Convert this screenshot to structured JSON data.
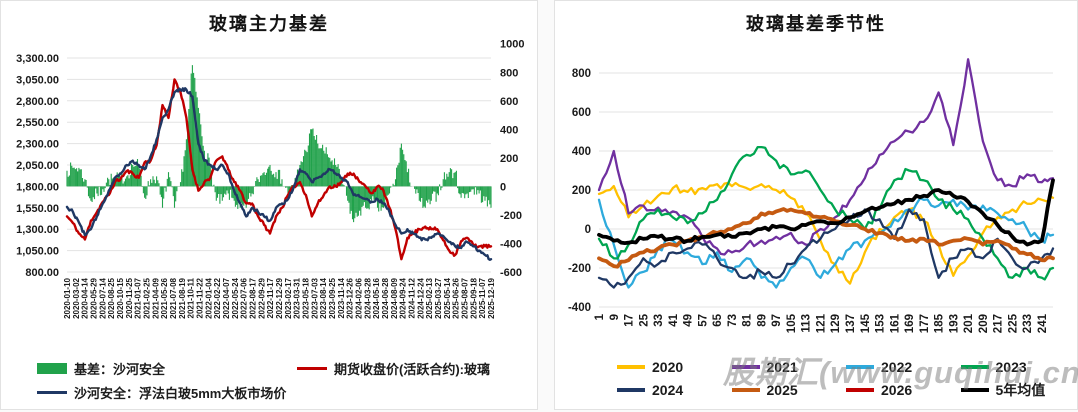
{
  "watermark": "股期汇(www.guqihui.cn)",
  "chart_data": [
    {
      "type": "combo",
      "title": "玻璃主力基差",
      "legend_position": "bottom",
      "grid": true,
      "left_axis": {
        "tick_labels": [
          "3,300.00",
          "3,050.00",
          "2,800.00",
          "2,550.00",
          "2,300.00",
          "2,050.00",
          "1,800.00",
          "1,550.00",
          "1,300.00",
          "1,050.00",
          "800.00"
        ],
        "min": 800,
        "max": 3300
      },
      "right_axis": {
        "ticks": [
          1000,
          800,
          600,
          400,
          200,
          0,
          -200,
          -400,
          -600
        ],
        "min": -600,
        "max": 1000,
        "zero_aligned_with_left_value": 1800
      },
      "x_axis_tick_labels": [
        "2020-01-10",
        "2020-03-02",
        "2020-04-14",
        "2020-05-29",
        "2020-07-14",
        "2020-08-25",
        "2020-10-15",
        "2020-11-25",
        "2021-01-07",
        "2021-02-25",
        "2021-04-09",
        "2021-05-26",
        "2021-07-08",
        "2021-08-19",
        "2021-10-11",
        "2021-11-22",
        "2022-01-04",
        "2022-02-22",
        "2022-04-07",
        "2022-05-24",
        "2022-07-06",
        "2022-08-17",
        "2022-09-29",
        "2022-11-17",
        "2022-12-29",
        "2023-02-17",
        "2023-03-31",
        "2023-05-18",
        "2023-07-03",
        "2023-08-14",
        "2023-09-25",
        "2023-11-14",
        "2023-12-26",
        "2024-02-06",
        "2024-03-28",
        "2024-05-16",
        "2024-06-28",
        "2024-08-09",
        "2024-09-24",
        "2024-11-12",
        "2024-12-24",
        "2025-02-13",
        "2025-03-27",
        "2025-05-14",
        "2025-06-26",
        "2025-08-07",
        "2025-09-18",
        "2025-11-07",
        "2025-12-19"
      ],
      "months": [
        "2020-01",
        "2020-02",
        "2020-03",
        "2020-04",
        "2020-05",
        "2020-06",
        "2020-07",
        "2020-08",
        "2020-09",
        "2020-10",
        "2020-11",
        "2020-12",
        "2021-01",
        "2021-02",
        "2021-03",
        "2021-04",
        "2021-05",
        "2021-06",
        "2021-07",
        "2021-08",
        "2021-09",
        "2021-10",
        "2021-11",
        "2021-12",
        "2022-01",
        "2022-02",
        "2022-03",
        "2022-04",
        "2022-05",
        "2022-06",
        "2022-07",
        "2022-08",
        "2022-09",
        "2022-10",
        "2022-11",
        "2022-12",
        "2023-01",
        "2023-02",
        "2023-03",
        "2023-04",
        "2023-05",
        "2023-06",
        "2023-07",
        "2023-08",
        "2023-09",
        "2023-10",
        "2023-11",
        "2023-12",
        "2024-01",
        "2024-02",
        "2024-03",
        "2024-04",
        "2024-05",
        "2024-06",
        "2024-07",
        "2024-08",
        "2024-09",
        "2024-10",
        "2024-11",
        "2024-12",
        "2025-01",
        "2025-02",
        "2025-03",
        "2025-04",
        "2025-05",
        "2025-06",
        "2025-07",
        "2025-08",
        "2025-09",
        "2025-10",
        "2025-11",
        "2025-12"
      ],
      "series": [
        {
          "name": "基差：沙河安全",
          "type": "bar",
          "axis": "right",
          "color": "#21A24B",
          "values": [
            110,
            130,
            130,
            50,
            -100,
            -50,
            -20,
            50,
            50,
            60,
            70,
            150,
            150,
            -80,
            50,
            70,
            -150,
            100,
            -150,
            30,
            330,
            850,
            550,
            250,
            150,
            -100,
            -100,
            -50,
            -100,
            -150,
            -150,
            -50,
            50,
            100,
            150,
            100,
            50,
            -50,
            0,
            150,
            250,
            400,
            300,
            250,
            200,
            150,
            50,
            -100,
            -250,
            -170,
            -150,
            -100,
            -150,
            -150,
            -50,
            50,
            300,
            100,
            0,
            -100,
            -150,
            -100,
            -50,
            50,
            100,
            100,
            -80,
            -50,
            -20,
            -50,
            -100,
            -150
          ]
        },
        {
          "name": "期货收盘价(活跃合约):玻璃",
          "type": "line",
          "axis": "left",
          "color": "#C00000",
          "values": [
            1450,
            1370,
            1250,
            1180,
            1400,
            1500,
            1620,
            1700,
            1850,
            1890,
            1980,
            1950,
            1900,
            2080,
            2100,
            2280,
            2750,
            2600,
            3050,
            2900,
            2600,
            2000,
            1750,
            1850,
            1900,
            2100,
            2150,
            2000,
            1850,
            1750,
            1600,
            1600,
            1450,
            1350,
            1250,
            1450,
            1550,
            1700,
            1800,
            1850,
            1700,
            1450,
            1600,
            1700,
            1800,
            1800,
            1850,
            1950,
            1950,
            1850,
            1800,
            1720,
            1800,
            1750,
            1550,
            1300,
            950,
            1200,
            1250,
            1300,
            1330,
            1300,
            1300,
            1170,
            1050,
            1000,
            1160,
            1200,
            1120,
            1100,
            1100,
            1100
          ]
        },
        {
          "name": "沙河安全：浮法白玻5mm大板市场价",
          "type": "line",
          "axis": "left",
          "color": "#1F3864",
          "values": [
            1560,
            1500,
            1380,
            1230,
            1300,
            1450,
            1600,
            1750,
            1900,
            1950,
            2050,
            2100,
            2050,
            2000,
            2150,
            2350,
            2600,
            2700,
            2900,
            2930,
            2930,
            2850,
            2300,
            2100,
            2050,
            2000,
            2050,
            1950,
            1750,
            1600,
            1450,
            1550,
            1500,
            1450,
            1400,
            1550,
            1600,
            1650,
            1800,
            2000,
            1950,
            1850,
            1900,
            1950,
            2000,
            1950,
            1900,
            1850,
            1700,
            1680,
            1650,
            1620,
            1650,
            1600,
            1500,
            1350,
            1250,
            1300,
            1250,
            1200,
            1180,
            1200,
            1250,
            1220,
            1150,
            1100,
            1080,
            1150,
            1100,
            1050,
            1000,
            950
          ]
        }
      ]
    },
    {
      "type": "line",
      "title": "玻璃基差季节性",
      "legend_position": "bottom",
      "grid": true,
      "y_ticks": [
        800,
        600,
        400,
        200,
        0,
        -200,
        -400
      ],
      "ylim": [
        -400,
        900
      ],
      "x_ticks": [
        1,
        9,
        17,
        25,
        33,
        41,
        49,
        57,
        65,
        73,
        81,
        89,
        97,
        105,
        113,
        121,
        129,
        137,
        145,
        153,
        161,
        169,
        177,
        185,
        193,
        201,
        209,
        217,
        225,
        233,
        241
      ],
      "x": [
        1,
        9,
        17,
        25,
        33,
        41,
        49,
        57,
        65,
        73,
        81,
        89,
        97,
        105,
        113,
        121,
        129,
        137,
        145,
        153,
        161,
        169,
        177,
        185,
        193,
        201,
        209,
        217,
        225,
        233,
        241,
        247
      ],
      "series": [
        {
          "name": "2020",
          "color": "#FFC000",
          "thick": false,
          "values": [
            180,
            220,
            60,
            120,
            170,
            210,
            190,
            210,
            230,
            220,
            210,
            230,
            200,
            160,
            80,
            -60,
            -180,
            -280,
            -120,
            0,
            60,
            100,
            40,
            -80,
            -240,
            -140,
            -20,
            60,
            100,
            130,
            150,
            160
          ]
        },
        {
          "name": "2021",
          "color": "#7030A0",
          "thick": false,
          "values": [
            200,
            400,
            80,
            120,
            110,
            90,
            60,
            -40,
            -100,
            -120,
            -80,
            -60,
            -40,
            -20,
            -80,
            0,
            60,
            150,
            260,
            380,
            450,
            500,
            550,
            700,
            430,
            870,
            450,
            250,
            220,
            280,
            240,
            260
          ]
        },
        {
          "name": "2022",
          "color": "#2EAADC",
          "thick": false,
          "values": [
            150,
            -80,
            -300,
            -220,
            -100,
            -60,
            -120,
            -180,
            -120,
            -220,
            -150,
            -250,
            -300,
            -200,
            -150,
            -250,
            -180,
            -100,
            -60,
            -20,
            50,
            100,
            150,
            120,
            150,
            100,
            120,
            80,
            50,
            0,
            -60,
            -30
          ]
        },
        {
          "name": "2023",
          "color": "#00A550",
          "thick": false,
          "values": [
            -50,
            -150,
            -80,
            50,
            100,
            60,
            30,
            80,
            150,
            280,
            380,
            420,
            350,
            280,
            300,
            200,
            100,
            50,
            0,
            100,
            250,
            300,
            250,
            150,
            100,
            50,
            -50,
            -150,
            -250,
            -200,
            -250,
            -200
          ]
        },
        {
          "name": "2024",
          "color": "#1F3864",
          "thick": false,
          "values": [
            -250,
            -300,
            -250,
            -150,
            -180,
            -120,
            -100,
            -80,
            -150,
            -200,
            -250,
            -220,
            -250,
            -180,
            -100,
            -50,
            0,
            50,
            100,
            50,
            -50,
            100,
            50,
            -250,
            -150,
            -100,
            -150,
            -50,
            -150,
            -200,
            -150,
            -100
          ]
        },
        {
          "name": "2025",
          "color": "#C55A11",
          "thick": true,
          "values": [
            -150,
            -190,
            -160,
            -120,
            -100,
            -80,
            -60,
            -40,
            -20,
            0,
            30,
            80,
            90,
            100,
            80,
            60,
            40,
            20,
            0,
            -20,
            -40,
            -60,
            -50,
            -80,
            -60,
            -50,
            -80,
            -60,
            -100,
            -130,
            -160,
            -150
          ]
        },
        {
          "name": "2026",
          "color": "#C00000",
          "thick": false,
          "values": []
        },
        {
          "name": "5年均值",
          "color": "#000000",
          "thick": true,
          "values": [
            -30,
            -60,
            -70,
            -50,
            -40,
            -50,
            -60,
            -40,
            -30,
            -40,
            -20,
            0,
            10,
            0,
            20,
            40,
            30,
            60,
            90,
            110,
            130,
            150,
            170,
            200,
            170,
            140,
            80,
            20,
            -40,
            -80,
            -60,
            250
          ]
        }
      ]
    }
  ]
}
